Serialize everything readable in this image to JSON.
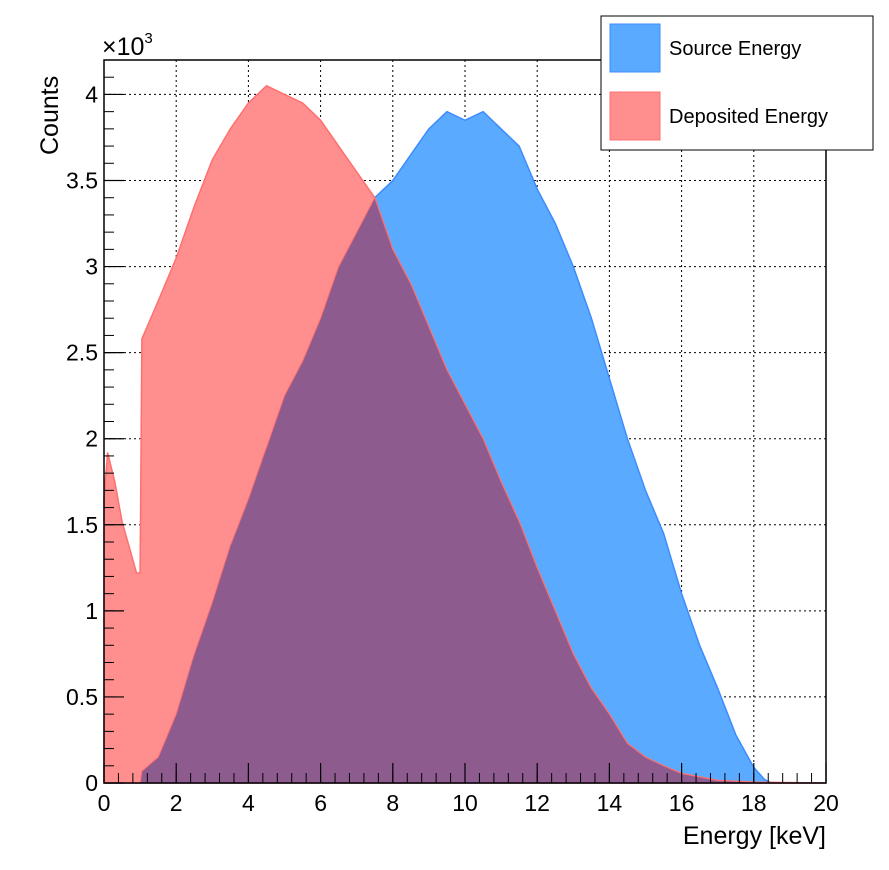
{
  "chart_data": {
    "type": "area",
    "xlabel": "Energy [keV]",
    "ylabel": "Counts",
    "y_multiplier": "×10",
    "y_multiplier_exp": "3",
    "xlim": [
      0,
      20
    ],
    "ylim": [
      0,
      4200
    ],
    "x_ticks": [
      0,
      2,
      4,
      6,
      8,
      10,
      12,
      14,
      16,
      18,
      20
    ],
    "y_ticks": [
      0,
      500,
      1000,
      1500,
      2000,
      2500,
      3000,
      3500,
      4000
    ],
    "y_tick_labels": [
      "0",
      "0.5",
      "1",
      "1.5",
      "2",
      "2.5",
      "3",
      "3.5",
      "4"
    ],
    "grid": true,
    "legend_position": "top-right",
    "series": [
      {
        "name": "Source Energy",
        "color": "#3d8cff",
        "fill": "#5aabff",
        "points": [
          [
            0,
            0
          ],
          [
            1.0,
            0
          ],
          [
            1.0,
            60
          ],
          [
            1.5,
            150
          ],
          [
            2.0,
            400
          ],
          [
            2.5,
            750
          ],
          [
            3.0,
            1050
          ],
          [
            3.5,
            1380
          ],
          [
            4.0,
            1650
          ],
          [
            4.5,
            1950
          ],
          [
            5.0,
            2250
          ],
          [
            5.5,
            2450
          ],
          [
            6.0,
            2700
          ],
          [
            6.5,
            3000
          ],
          [
            7.0,
            3200
          ],
          [
            7.5,
            3400
          ],
          [
            8.0,
            3500
          ],
          [
            8.5,
            3650
          ],
          [
            9.0,
            3800
          ],
          [
            9.5,
            3900
          ],
          [
            10.0,
            3850
          ],
          [
            10.5,
            3900
          ],
          [
            11.0,
            3800
          ],
          [
            11.5,
            3700
          ],
          [
            12.0,
            3450
          ],
          [
            12.5,
            3250
          ],
          [
            13.0,
            3000
          ],
          [
            13.5,
            2700
          ],
          [
            14.0,
            2350
          ],
          [
            14.5,
            2000
          ],
          [
            15.0,
            1700
          ],
          [
            15.5,
            1450
          ],
          [
            16.0,
            1100
          ],
          [
            16.5,
            800
          ],
          [
            17.0,
            550
          ],
          [
            17.5,
            280
          ],
          [
            18.0,
            90
          ],
          [
            18.3,
            20
          ],
          [
            18.5,
            0
          ],
          [
            20,
            0
          ]
        ]
      },
      {
        "name": "Deposited Energy",
        "color": "#ff6f6f",
        "fill": "#ff8f8f",
        "points": [
          [
            0,
            1650
          ],
          [
            0.1,
            1920
          ],
          [
            0.3,
            1750
          ],
          [
            0.5,
            1520
          ],
          [
            0.7,
            1370
          ],
          [
            0.9,
            1220
          ],
          [
            1.0,
            1220
          ],
          [
            1.05,
            2580
          ],
          [
            1.5,
            2800
          ],
          [
            2.0,
            3050
          ],
          [
            2.5,
            3350
          ],
          [
            3.0,
            3620
          ],
          [
            3.5,
            3800
          ],
          [
            4.0,
            3950
          ],
          [
            4.5,
            4050
          ],
          [
            5.0,
            4000
          ],
          [
            5.5,
            3950
          ],
          [
            6.0,
            3850
          ],
          [
            6.5,
            3700
          ],
          [
            7.0,
            3550
          ],
          [
            7.5,
            3400
          ],
          [
            8.0,
            3100
          ],
          [
            8.5,
            2900
          ],
          [
            9.0,
            2650
          ],
          [
            9.5,
            2400
          ],
          [
            10.0,
            2200
          ],
          [
            10.5,
            2000
          ],
          [
            11.0,
            1750
          ],
          [
            11.5,
            1520
          ],
          [
            12.0,
            1250
          ],
          [
            12.5,
            1000
          ],
          [
            13.0,
            750
          ],
          [
            13.5,
            550
          ],
          [
            14.0,
            400
          ],
          [
            14.5,
            230
          ],
          [
            15.0,
            150
          ],
          [
            15.5,
            100
          ],
          [
            16.0,
            55
          ],
          [
            17.0,
            15
          ],
          [
            18.0,
            5
          ],
          [
            20,
            0
          ]
        ]
      }
    ]
  }
}
